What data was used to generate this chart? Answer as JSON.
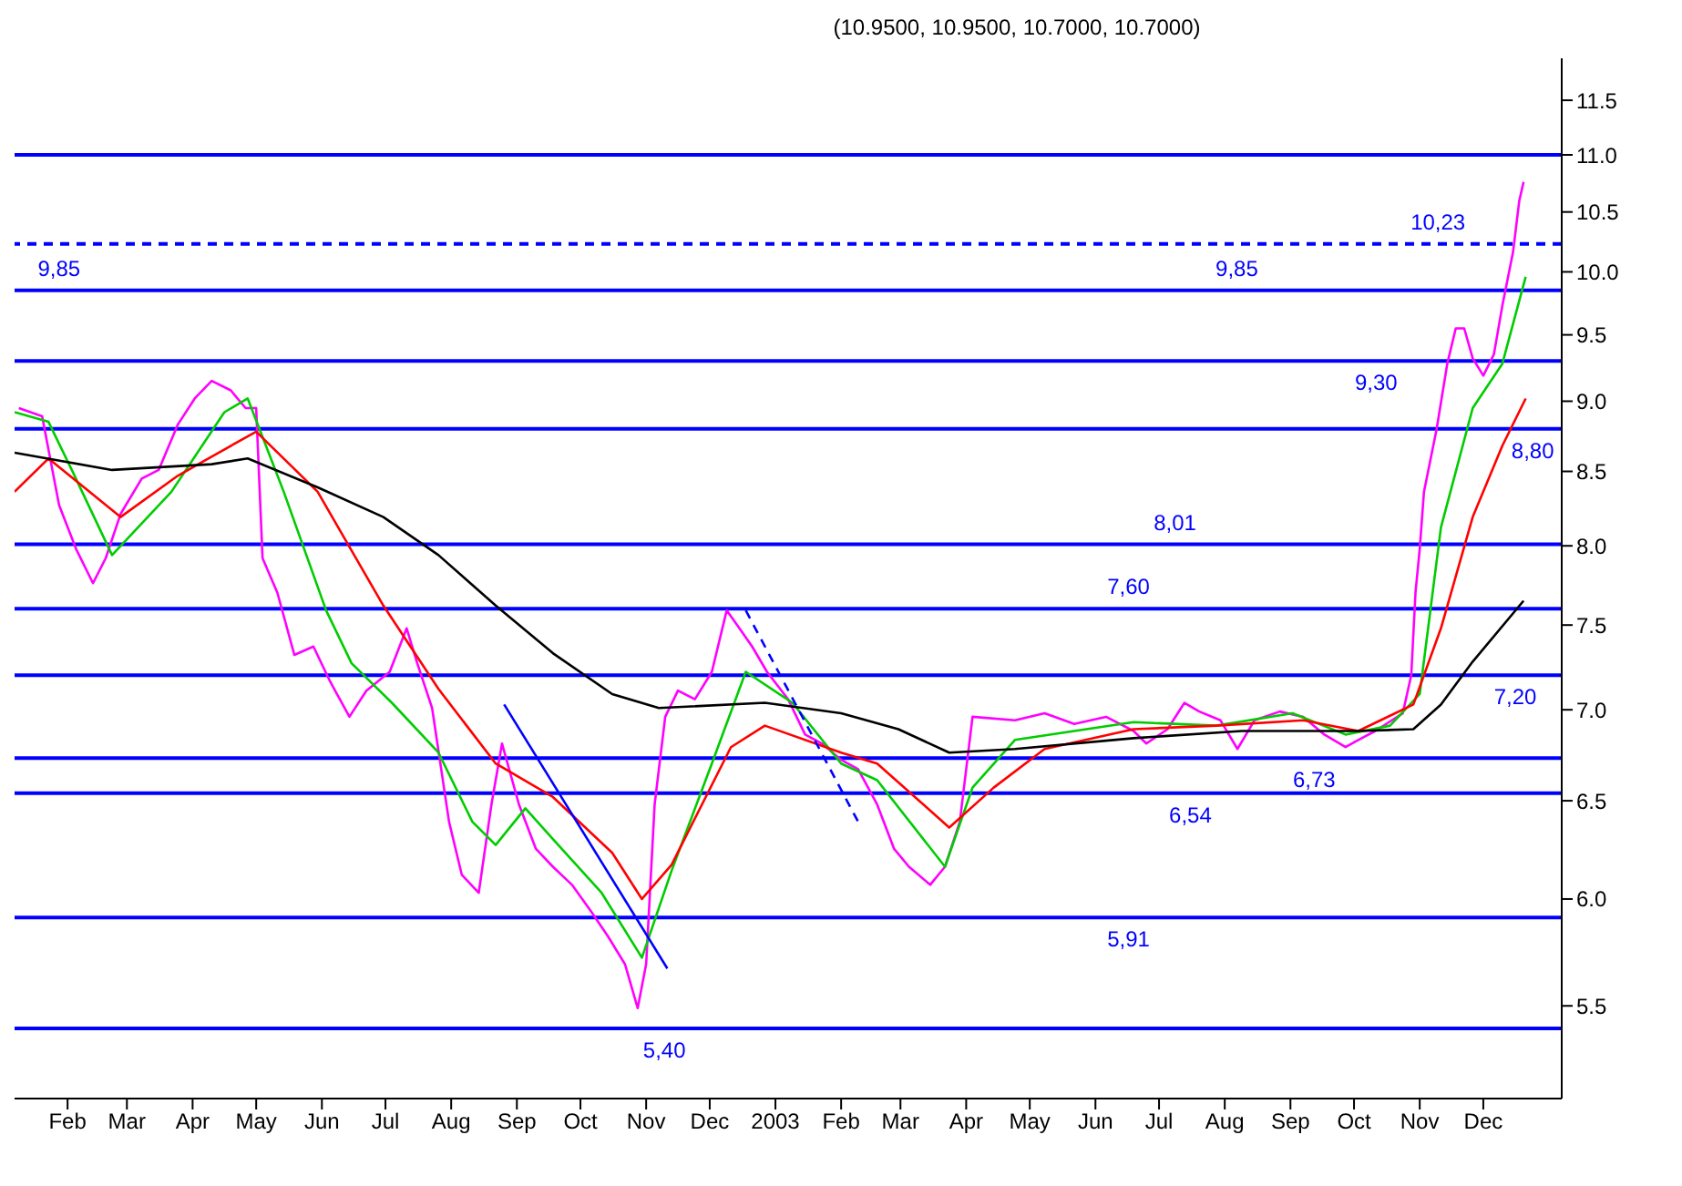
{
  "chart_data": {
    "type": "line",
    "title": "(10.9500, 10.9500, 10.7000, 10.7000)",
    "log": true,
    "marker": "none",
    "xlim": [
      "2002-01-07",
      "2004-01-07"
    ],
    "xticks": [
      {
        "value": "2002-02-01",
        "label": "Feb"
      },
      {
        "value": "2002-03-01",
        "label": "Mar"
      },
      {
        "value": "2002-04-01",
        "label": "Apr"
      },
      {
        "value": "2002-05-01",
        "label": "May"
      },
      {
        "value": "2002-06-01",
        "label": "Jun"
      },
      {
        "value": "2002-07-01",
        "label": "Jul"
      },
      {
        "value": "2002-08-01",
        "label": "Aug"
      },
      {
        "value": "2002-09-01",
        "label": "Sep"
      },
      {
        "value": "2002-10-01",
        "label": "Oct"
      },
      {
        "value": "2002-11-01",
        "label": "Nov"
      },
      {
        "value": "2002-12-01",
        "label": "Dec"
      },
      {
        "value": "2003-01-01",
        "label": "2003"
      },
      {
        "value": "2003-02-01",
        "label": "Feb"
      },
      {
        "value": "2003-03-01",
        "label": "Mar"
      },
      {
        "value": "2003-04-01",
        "label": "Apr"
      },
      {
        "value": "2003-05-01",
        "label": "May"
      },
      {
        "value": "2003-06-01",
        "label": "Jun"
      },
      {
        "value": "2003-07-01",
        "label": "Jul"
      },
      {
        "value": "2003-08-01",
        "label": "Aug"
      },
      {
        "value": "2003-09-01",
        "label": "Sep"
      },
      {
        "value": "2003-10-01",
        "label": "Oct"
      },
      {
        "value": "2003-11-01",
        "label": "Nov"
      },
      {
        "value": "2003-12-01",
        "label": "Dec"
      }
    ],
    "ylim": [
      5.1,
      11.9
    ],
    "yticks": [
      {
        "value": 5.5,
        "label": "5.5"
      },
      {
        "value": 6,
        "label": "6.0"
      },
      {
        "value": 6.5,
        "label": "6.5"
      },
      {
        "value": 7,
        "label": "7.0"
      },
      {
        "value": 7.5,
        "label": "7.5"
      },
      {
        "value": 8,
        "label": "8.0"
      },
      {
        "value": 8.5,
        "label": "8.5"
      },
      {
        "value": 9,
        "label": "9.0"
      },
      {
        "value": 9.5,
        "label": "9.5"
      },
      {
        "value": 10,
        "label": "10.0"
      },
      {
        "value": 10.5,
        "label": "10.5"
      },
      {
        "value": 11,
        "label": "11.0"
      },
      {
        "value": 11.5,
        "label": "11.5"
      }
    ],
    "series": [
      {
        "color": "#ff00ff",
        "x": [
          "2002-01-09",
          "2002-01-20",
          "2002-01-28",
          "2002-02-05",
          "2002-02-13",
          "2002-02-19",
          "2002-02-26",
          "2002-03-08",
          "2002-03-16",
          "2002-03-25",
          "2002-04-02",
          "2002-04-10",
          "2002-04-19",
          "2002-04-26",
          "2002-05-01",
          "2002-05-04",
          "2002-05-11",
          "2002-05-19",
          "2002-05-28",
          "2002-06-05",
          "2002-06-14",
          "2002-06-22",
          "2002-07-03",
          "2002-07-11",
          "2002-07-16",
          "2002-07-23",
          "2002-07-31",
          "2002-08-06",
          "2002-08-14",
          "2002-08-20",
          "2002-08-25",
          "2002-09-02",
          "2002-09-10",
          "2002-09-18",
          "2002-09-27",
          "2002-10-06",
          "2002-10-14",
          "2002-10-22",
          "2002-10-28",
          "2002-11-01",
          "2002-11-05",
          "2002-11-10",
          "2002-11-16",
          "2002-11-24",
          "2002-12-02",
          "2002-12-09",
          "2002-12-15",
          "2002-12-21",
          "2002-12-28",
          "2003-01-07",
          "2003-01-15",
          "2003-01-23",
          "2003-02-01",
          "2003-02-09",
          "2003-02-18",
          "2003-02-26",
          "2003-03-05",
          "2003-03-15",
          "2003-03-22",
          "2003-03-29",
          "2003-04-04",
          "2003-04-24",
          "2003-05-08",
          "2003-05-22",
          "2003-06-06",
          "2003-06-19",
          "2003-06-25",
          "2003-07-05",
          "2003-07-13",
          "2003-07-20",
          "2003-07-30",
          "2003-08-07",
          "2003-08-15",
          "2003-08-27",
          "2003-09-07",
          "2003-09-17",
          "2003-09-27",
          "2003-10-03",
          "2003-10-11",
          "2003-10-24",
          "2003-10-28",
          "2003-10-30",
          "2003-11-01",
          "2003-11-03",
          "2003-11-09",
          "2003-11-14",
          "2003-11-18",
          "2003-11-22",
          "2003-11-26",
          "2003-12-01",
          "2003-12-06",
          "2003-12-10",
          "2003-12-15",
          "2003-12-18",
          "2003-12-20"
        ],
        "values": [
          8.95,
          8.89,
          8.27,
          7.98,
          7.76,
          7.92,
          8.21,
          8.45,
          8.51,
          8.83,
          9.02,
          9.15,
          9.08,
          8.95,
          8.95,
          7.92,
          7.7,
          7.32,
          7.37,
          7.16,
          6.96,
          7.11,
          7.22,
          7.48,
          7.27,
          7.01,
          6.39,
          6.12,
          6.03,
          6.48,
          6.81,
          6.48,
          6.25,
          6.16,
          6.07,
          5.94,
          5.82,
          5.69,
          5.49,
          5.69,
          6.48,
          6.96,
          7.11,
          7.06,
          7.22,
          7.59,
          7.48,
          7.37,
          7.22,
          7.06,
          6.86,
          6.81,
          6.72,
          6.67,
          6.48,
          6.25,
          6.16,
          6.07,
          6.16,
          6.39,
          6.96,
          6.94,
          6.98,
          6.92,
          6.96,
          6.88,
          6.81,
          6.89,
          7.04,
          6.99,
          6.94,
          6.78,
          6.94,
          6.99,
          6.96,
          6.86,
          6.79,
          6.83,
          6.88,
          6.98,
          7.2,
          7.7,
          7.98,
          8.36,
          8.8,
          9.28,
          9.55,
          9.55,
          9.32,
          9.19,
          9.35,
          9.73,
          10.16,
          10.6,
          10.76
        ]
      },
      {
        "color": "#00cc00",
        "x": [
          "2002-01-07",
          "2002-01-23",
          "2002-02-03",
          "2002-02-22",
          "2002-03-22",
          "2002-04-16",
          "2002-04-27",
          "2002-05-14",
          "2002-06-03",
          "2002-06-15",
          "2002-07-04",
          "2002-07-26",
          "2002-08-11",
          "2002-08-22",
          "2002-09-05",
          "2002-09-18",
          "2002-10-11",
          "2002-10-30",
          "2002-11-13",
          "2002-12-02",
          "2002-12-18",
          "2003-01-09",
          "2003-02-01",
          "2003-02-18",
          "2003-03-22",
          "2003-04-04",
          "2003-04-24",
          "2003-06-19",
          "2003-07-28",
          "2003-09-02",
          "2003-09-27",
          "2003-10-18",
          "2003-11-01",
          "2003-11-11",
          "2003-11-26",
          "2003-12-10",
          "2003-12-21"
        ],
        "values": [
          8.92,
          8.85,
          8.51,
          7.94,
          8.36,
          8.92,
          9.02,
          8.36,
          7.59,
          7.27,
          7.04,
          6.76,
          6.39,
          6.27,
          6.46,
          6.3,
          6.03,
          5.72,
          6.14,
          6.7,
          7.22,
          7.04,
          6.7,
          6.61,
          6.16,
          6.57,
          6.83,
          6.93,
          6.91,
          6.98,
          6.86,
          6.91,
          7.09,
          8.12,
          8.95,
          9.28,
          9.96
        ]
      },
      {
        "color": "#ff0000",
        "x": [
          "2002-01-07",
          "2002-01-23",
          "2002-02-26",
          "2002-03-25",
          "2002-05-01",
          "2002-05-30",
          "2002-06-30",
          "2002-07-26",
          "2002-08-22",
          "2002-09-18",
          "2002-10-16",
          "2002-10-30",
          "2002-11-13",
          "2002-12-11",
          "2002-12-27",
          "2003-02-01",
          "2003-02-18",
          "2003-03-24",
          "2003-04-14",
          "2003-05-08",
          "2003-06-19",
          "2003-07-28",
          "2003-09-07",
          "2003-10-03",
          "2003-10-29",
          "2003-11-11",
          "2003-11-26",
          "2003-12-10",
          "2003-12-21"
        ],
        "values": [
          8.36,
          8.59,
          8.19,
          8.47,
          8.78,
          8.36,
          7.62,
          7.12,
          6.7,
          6.52,
          6.23,
          6.0,
          6.17,
          6.79,
          6.91,
          6.76,
          6.7,
          6.36,
          6.57,
          6.78,
          6.89,
          6.91,
          6.94,
          6.88,
          7.03,
          7.48,
          8.19,
          8.68,
          9.02
        ]
      },
      {
        "color": "#000000",
        "x": [
          "2002-01-07",
          "2002-02-22",
          "2002-04-10",
          "2002-04-27",
          "2002-05-30",
          "2002-06-30",
          "2002-07-26",
          "2002-08-22",
          "2002-09-18",
          "2002-10-16",
          "2002-11-07",
          "2002-12-27",
          "2003-02-01",
          "2003-02-28",
          "2003-03-24",
          "2003-04-24",
          "2003-06-19",
          "2003-08-09",
          "2003-10-03",
          "2003-10-29",
          "2003-11-11",
          "2003-11-26",
          "2003-12-20"
        ],
        "values": [
          8.63,
          8.51,
          8.55,
          8.59,
          8.39,
          8.19,
          7.94,
          7.62,
          7.33,
          7.09,
          7.01,
          7.04,
          6.98,
          6.89,
          6.76,
          6.78,
          6.84,
          6.88,
          6.88,
          6.89,
          7.03,
          7.28,
          7.65
        ]
      },
      {
        "color": "#0000ff",
        "x": [
          "2002-08-26",
          "2002-11-11"
        ],
        "values": [
          7.03,
          5.67
        ]
      },
      {
        "color": "#0000ff",
        "line_style": "dashed",
        "x": [
          "2002-12-18",
          "2003-02-09"
        ],
        "values": [
          7.59,
          6.39
        ]
      }
    ],
    "ref_lines": [
      {
        "axis": "y",
        "value": 11.0,
        "color": "#0000ff"
      },
      {
        "axis": "y",
        "value": 10.23,
        "label": "10,23",
        "color": "#0000ff",
        "line_style": "dashed"
      },
      {
        "axis": "y",
        "value": 9.85,
        "label": "9,85",
        "color": "#0000ff"
      },
      {
        "axis": "y",
        "value": 9.3,
        "label": "9,30",
        "color": "#0000ff"
      },
      {
        "axis": "y",
        "value": 8.8,
        "label": "8,80",
        "color": "#0000ff"
      },
      {
        "axis": "y",
        "value": 8.01,
        "label": "8,01",
        "color": "#0000ff"
      },
      {
        "axis": "y",
        "value": 7.6,
        "label": "7,60",
        "color": "#0000ff"
      },
      {
        "axis": "y",
        "value": 7.2,
        "label": "7,20",
        "color": "#0000ff"
      },
      {
        "axis": "y",
        "value": 6.73,
        "label": "6,73",
        "color": "#0000ff"
      },
      {
        "axis": "y",
        "value": 6.54,
        "label": "6,54",
        "color": "#0000ff"
      },
      {
        "axis": "y",
        "value": 5.91,
        "label": "5,91",
        "color": "#0000ff"
      },
      {
        "axis": "y",
        "value": 5.4,
        "label": "5,40",
        "color": "#0000ff"
      }
    ],
    "annotations": [
      {
        "text": "9,85",
        "x": "2002-01-28",
        "y": 9.85
      }
    ]
  }
}
